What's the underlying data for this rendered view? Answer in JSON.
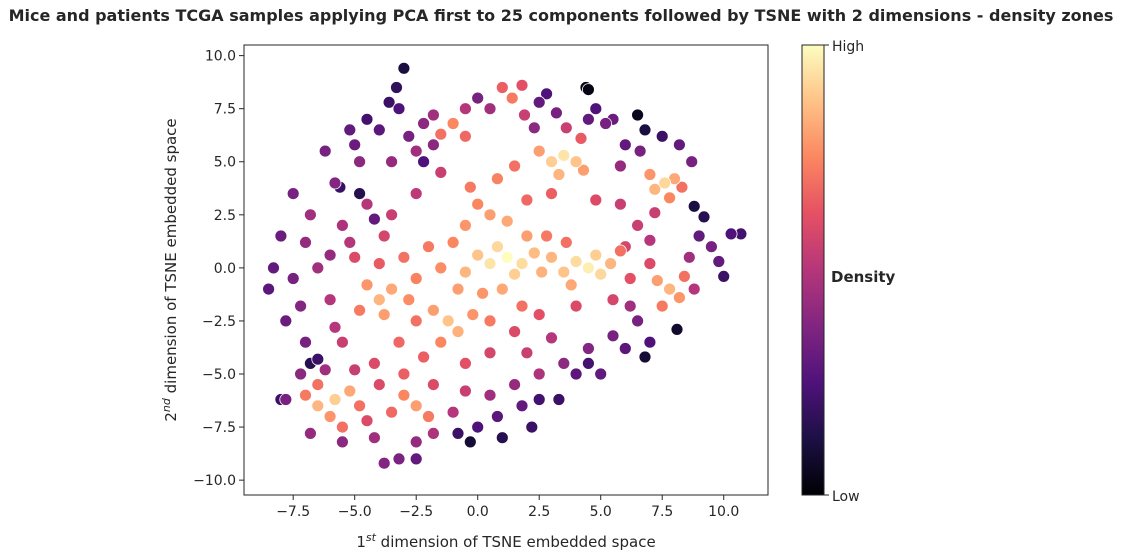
{
  "chart_data": {
    "type": "scatter",
    "title": "Mice and patients TCGA samples applying PCA first to 25 components followed by TSNE with 2 dimensions - density zones",
    "xlabel": {
      "pre": "1",
      "sup": "st",
      "post": " dimension of TSNE embedded space"
    },
    "ylabel": {
      "pre": "2",
      "sup": "nd",
      "post": " dimension of TSNE embedded space"
    },
    "xlim": [
      -9.5,
      11.8
    ],
    "ylim": [
      -10.7,
      10.5
    ],
    "xticks": [
      -7.5,
      -5.0,
      -2.5,
      0.0,
      2.5,
      5.0,
      7.5,
      10.0
    ],
    "xtick_labels": [
      "−7.5",
      "−5.0",
      "−2.5",
      "0.0",
      "2.5",
      "5.0",
      "7.5",
      "10.0"
    ],
    "yticks": [
      10.0,
      7.5,
      5.0,
      2.5,
      0.0,
      -2.5,
      -5.0,
      -7.5,
      -10.0
    ],
    "ytick_labels": [
      "10.0",
      "7.5",
      "5.0",
      "2.5",
      "0.0",
      "−2.5",
      "−5.0",
      "−7.5",
      "−10.0"
    ],
    "grid": false,
    "colormap": "magma",
    "colorbar": {
      "title": "Density",
      "high_label": "High",
      "low_label": "Low",
      "stops": [
        "#000004",
        "#1c1044",
        "#4f127b",
        "#812581",
        "#b5367a",
        "#e55064",
        "#fb8761",
        "#fec287",
        "#fcfdbf"
      ]
    },
    "point_edge_color": "#ffffff",
    "points": [
      {
        "x": 3.5,
        "y": 5.3,
        "d": 0.95
      },
      {
        "x": 3.0,
        "y": 5.0,
        "d": 0.9
      },
      {
        "x": 4.0,
        "y": 5.0,
        "d": 0.88
      },
      {
        "x": 2.5,
        "y": 5.5,
        "d": 0.8
      },
      {
        "x": 4.3,
        "y": 4.6,
        "d": 0.8
      },
      {
        "x": 3.3,
        "y": 4.4,
        "d": 0.85
      },
      {
        "x": 7.6,
        "y": 4.0,
        "d": 0.92
      },
      {
        "x": 7.2,
        "y": 3.7,
        "d": 0.85
      },
      {
        "x": 8.0,
        "y": 4.2,
        "d": 0.82
      },
      {
        "x": 7.0,
        "y": 4.4,
        "d": 0.78
      },
      {
        "x": 7.8,
        "y": 3.3,
        "d": 0.75
      },
      {
        "x": 8.3,
        "y": 3.8,
        "d": 0.7
      },
      {
        "x": 1.2,
        "y": 0.5,
        "d": 1.0
      },
      {
        "x": 0.5,
        "y": 0.2,
        "d": 0.95
      },
      {
        "x": 1.8,
        "y": 0.2,
        "d": 0.93
      },
      {
        "x": 0.8,
        "y": 1.0,
        "d": 0.92
      },
      {
        "x": 1.5,
        "y": -0.3,
        "d": 0.9
      },
      {
        "x": 0.0,
        "y": 0.6,
        "d": 0.88
      },
      {
        "x": 2.3,
        "y": 0.7,
        "d": 0.86
      },
      {
        "x": -0.5,
        "y": -0.2,
        "d": 0.85
      },
      {
        "x": 2.6,
        "y": -0.2,
        "d": 0.84
      },
      {
        "x": 4.5,
        "y": 0.0,
        "d": 0.97
      },
      {
        "x": 4.0,
        "y": 0.3,
        "d": 0.93
      },
      {
        "x": 5.0,
        "y": -0.3,
        "d": 0.92
      },
      {
        "x": 3.5,
        "y": -0.2,
        "d": 0.88
      },
      {
        "x": 4.8,
        "y": 0.6,
        "d": 0.9
      },
      {
        "x": 5.4,
        "y": 0.2,
        "d": 0.85
      },
      {
        "x": 0.5,
        "y": 2.5,
        "d": 0.8
      },
      {
        "x": 1.2,
        "y": 2.2,
        "d": 0.82
      },
      {
        "x": 0.0,
        "y": 3.0,
        "d": 0.75
      },
      {
        "x": -0.3,
        "y": 3.8,
        "d": 0.72
      },
      {
        "x": 0.8,
        "y": 4.2,
        "d": 0.74
      },
      {
        "x": 1.5,
        "y": 4.8,
        "d": 0.7
      },
      {
        "x": -4.0,
        "y": -1.5,
        "d": 0.85
      },
      {
        "x": -3.5,
        "y": -1.0,
        "d": 0.82
      },
      {
        "x": -4.5,
        "y": -0.8,
        "d": 0.78
      },
      {
        "x": -3.8,
        "y": -2.2,
        "d": 0.8
      },
      {
        "x": -2.8,
        "y": -1.5,
        "d": 0.76
      },
      {
        "x": -4.8,
        "y": -2.0,
        "d": 0.72
      },
      {
        "x": -1.2,
        "y": -2.5,
        "d": 0.88
      },
      {
        "x": -0.8,
        "y": -3.0,
        "d": 0.84
      },
      {
        "x": -1.8,
        "y": -2.0,
        "d": 0.8
      },
      {
        "x": -0.2,
        "y": -2.2,
        "d": 0.78
      },
      {
        "x": -1.5,
        "y": -3.5,
        "d": 0.75
      },
      {
        "x": -5.8,
        "y": -6.2,
        "d": 0.9
      },
      {
        "x": -6.5,
        "y": -6.5,
        "d": 0.85
      },
      {
        "x": -5.2,
        "y": -5.8,
        "d": 0.82
      },
      {
        "x": -6.0,
        "y": -7.0,
        "d": 0.78
      },
      {
        "x": -7.0,
        "y": -6.0,
        "d": 0.72
      },
      {
        "x": -4.8,
        "y": -6.5,
        "d": 0.7
      },
      {
        "x": -2.5,
        "y": -6.5,
        "d": 0.8
      },
      {
        "x": -3.0,
        "y": -6.0,
        "d": 0.75
      },
      {
        "x": -2.0,
        "y": -7.0,
        "d": 0.72
      },
      {
        "x": -3.5,
        "y": -6.8,
        "d": 0.68
      },
      {
        "x": 7.8,
        "y": -1.0,
        "d": 0.85
      },
      {
        "x": 7.3,
        "y": -0.6,
        "d": 0.8
      },
      {
        "x": 8.2,
        "y": -1.4,
        "d": 0.78
      },
      {
        "x": 7.5,
        "y": -1.8,
        "d": 0.72
      },
      {
        "x": 8.4,
        "y": -0.4,
        "d": 0.7
      },
      {
        "x": -1.0,
        "y": 6.8,
        "d": 0.75
      },
      {
        "x": -1.5,
        "y": 6.3,
        "d": 0.7
      },
      {
        "x": -0.5,
        "y": 6.2,
        "d": 0.68
      },
      {
        "x": 1.4,
        "y": 8.0,
        "d": 0.72
      },
      {
        "x": 1.0,
        "y": 8.5,
        "d": 0.66
      },
      {
        "x": 1.8,
        "y": 8.6,
        "d": 0.62
      },
      {
        "x": -3.0,
        "y": 0.5,
        "d": 0.7
      },
      {
        "x": -2.0,
        "y": 1.0,
        "d": 0.72
      },
      {
        "x": -2.5,
        "y": -0.5,
        "d": 0.74
      },
      {
        "x": -1.5,
        "y": 0.0,
        "d": 0.76
      },
      {
        "x": -4.0,
        "y": 0.2,
        "d": 0.65
      },
      {
        "x": -5.0,
        "y": 0.5,
        "d": 0.6
      },
      {
        "x": -0.8,
        "y": -1.0,
        "d": 0.8
      },
      {
        "x": 0.2,
        "y": -1.2,
        "d": 0.78
      },
      {
        "x": 1.0,
        "y": -1.0,
        "d": 0.82
      },
      {
        "x": 2.8,
        "y": 1.5,
        "d": 0.72
      },
      {
        "x": 3.6,
        "y": 1.2,
        "d": 0.7
      },
      {
        "x": 2.0,
        "y": 3.2,
        "d": 0.68
      },
      {
        "x": 3.0,
        "y": 3.5,
        "d": 0.66
      },
      {
        "x": 4.8,
        "y": 3.2,
        "d": 0.6
      },
      {
        "x": 5.8,
        "y": 3.0,
        "d": 0.55
      },
      {
        "x": 6.0,
        "y": 1.0,
        "d": 0.58
      },
      {
        "x": 6.5,
        "y": 2.0,
        "d": 0.55
      },
      {
        "x": 6.2,
        "y": -0.5,
        "d": 0.62
      },
      {
        "x": 5.5,
        "y": -1.5,
        "d": 0.58
      },
      {
        "x": 4.0,
        "y": -1.8,
        "d": 0.6
      },
      {
        "x": 2.5,
        "y": -2.2,
        "d": 0.62
      },
      {
        "x": 1.5,
        "y": -3.0,
        "d": 0.6
      },
      {
        "x": 0.5,
        "y": -4.0,
        "d": 0.58
      },
      {
        "x": -0.5,
        "y": -4.5,
        "d": 0.62
      },
      {
        "x": -2.2,
        "y": -4.2,
        "d": 0.66
      },
      {
        "x": -3.2,
        "y": -3.5,
        "d": 0.68
      },
      {
        "x": -4.2,
        "y": -4.5,
        "d": 0.6
      },
      {
        "x": -5.5,
        "y": -3.5,
        "d": 0.55
      },
      {
        "x": -6.0,
        "y": -1.5,
        "d": 0.5
      },
      {
        "x": -6.5,
        "y": 0.0,
        "d": 0.45
      },
      {
        "x": -7.0,
        "y": 1.2,
        "d": 0.42
      },
      {
        "x": -6.8,
        "y": 2.5,
        "d": 0.45
      },
      {
        "x": -5.5,
        "y": 2.0,
        "d": 0.48
      },
      {
        "x": -4.5,
        "y": 3.0,
        "d": 0.5
      },
      {
        "x": -3.5,
        "y": 2.5,
        "d": 0.55
      },
      {
        "x": -2.5,
        "y": 3.5,
        "d": 0.52
      },
      {
        "x": -1.5,
        "y": 4.5,
        "d": 0.55
      },
      {
        "x": -2.5,
        "y": 5.5,
        "d": 0.45
      },
      {
        "x": -3.5,
        "y": 5.0,
        "d": 0.42
      },
      {
        "x": -4.8,
        "y": 5.0,
        "d": 0.4
      },
      {
        "x": -5.8,
        "y": 4.0,
        "d": 0.38
      },
      {
        "x": -6.2,
        "y": 5.5,
        "d": 0.35
      },
      {
        "x": -7.5,
        "y": 3.5,
        "d": 0.35
      },
      {
        "x": -8.0,
        "y": 1.5,
        "d": 0.32
      },
      {
        "x": -8.3,
        "y": 0.0,
        "d": 0.3
      },
      {
        "x": -8.5,
        "y": -1.0,
        "d": 0.28
      },
      {
        "x": -7.8,
        "y": -2.5,
        "d": 0.32
      },
      {
        "x": -7.0,
        "y": -3.5,
        "d": 0.35
      },
      {
        "x": -6.2,
        "y": -4.8,
        "d": 0.45
      },
      {
        "x": -7.2,
        "y": -5.0,
        "d": 0.4
      },
      {
        "x": -7.8,
        "y": -6.2,
        "d": 0.35
      },
      {
        "x": -6.8,
        "y": -7.8,
        "d": 0.42
      },
      {
        "x": -5.5,
        "y": -8.2,
        "d": 0.4
      },
      {
        "x": -4.2,
        "y": -8.0,
        "d": 0.45
      },
      {
        "x": -3.8,
        "y": -9.2,
        "d": 0.38
      },
      {
        "x": -3.2,
        "y": -9.0,
        "d": 0.36
      },
      {
        "x": -2.5,
        "y": -8.2,
        "d": 0.42
      },
      {
        "x": -1.8,
        "y": -7.8,
        "d": 0.48
      },
      {
        "x": -1.0,
        "y": -6.8,
        "d": 0.5
      },
      {
        "x": -0.5,
        "y": -5.8,
        "d": 0.55
      },
      {
        "x": 0.5,
        "y": -6.0,
        "d": 0.45
      },
      {
        "x": 1.5,
        "y": -5.5,
        "d": 0.42
      },
      {
        "x": 2.5,
        "y": -5.0,
        "d": 0.48
      },
      {
        "x": 3.5,
        "y": -4.5,
        "d": 0.4
      },
      {
        "x": 4.5,
        "y": -3.8,
        "d": 0.38
      },
      {
        "x": 5.5,
        "y": -3.2,
        "d": 0.35
      },
      {
        "x": 6.5,
        "y": -2.5,
        "d": 0.35
      },
      {
        "x": 7.0,
        "y": -3.5,
        "d": 0.25
      },
      {
        "x": 6.8,
        "y": -4.2,
        "d": 0.1
      },
      {
        "x": 8.1,
        "y": -2.9,
        "d": 0.08
      },
      {
        "x": 8.8,
        "y": -1.0,
        "d": 0.5
      },
      {
        "x": 8.6,
        "y": 0.5,
        "d": 0.45
      },
      {
        "x": 9.0,
        "y": 1.5,
        "d": 0.3
      },
      {
        "x": 9.5,
        "y": 1.0,
        "d": 0.35
      },
      {
        "x": 9.8,
        "y": 0.3,
        "d": 0.3
      },
      {
        "x": 10.3,
        "y": 1.6,
        "d": 0.25
      },
      {
        "x": 10.7,
        "y": 1.6,
        "d": 0.22
      },
      {
        "x": 10.0,
        "y": -0.4,
        "d": 0.2
      },
      {
        "x": 9.2,
        "y": 2.4,
        "d": 0.15
      },
      {
        "x": 8.8,
        "y": 2.9,
        "d": 0.12
      },
      {
        "x": 8.7,
        "y": 5.0,
        "d": 0.35
      },
      {
        "x": 8.2,
        "y": 5.8,
        "d": 0.3
      },
      {
        "x": 7.5,
        "y": 6.2,
        "d": 0.2
      },
      {
        "x": 6.8,
        "y": 6.5,
        "d": 0.12
      },
      {
        "x": 6.5,
        "y": 7.2,
        "d": 0.05
      },
      {
        "x": 6.0,
        "y": 5.8,
        "d": 0.3
      },
      {
        "x": 5.2,
        "y": 6.8,
        "d": 0.35
      },
      {
        "x": 4.5,
        "y": 7.0,
        "d": 0.3
      },
      {
        "x": 4.8,
        "y": 7.5,
        "d": 0.25
      },
      {
        "x": 5.5,
        "y": 7.0,
        "d": 0.32
      },
      {
        "x": 4.4,
        "y": 8.5,
        "d": 0.02
      },
      {
        "x": 4.5,
        "y": 8.4,
        "d": 0.03
      },
      {
        "x": 3.2,
        "y": 7.3,
        "d": 0.35
      },
      {
        "x": 2.5,
        "y": 7.8,
        "d": 0.3
      },
      {
        "x": 2.3,
        "y": 6.6,
        "d": 0.4
      },
      {
        "x": 0.5,
        "y": 7.5,
        "d": 0.45
      },
      {
        "x": 0.0,
        "y": 8.0,
        "d": 0.35
      },
      {
        "x": -0.5,
        "y": 7.5,
        "d": 0.5
      },
      {
        "x": -1.8,
        "y": 7.2,
        "d": 0.45
      },
      {
        "x": -2.2,
        "y": 6.8,
        "d": 0.4
      },
      {
        "x": -2.8,
        "y": 6.2,
        "d": 0.35
      },
      {
        "x": -3.2,
        "y": 7.5,
        "d": 0.25
      },
      {
        "x": -3.3,
        "y": 8.5,
        "d": 0.18
      },
      {
        "x": -3.0,
        "y": 9.4,
        "d": 0.12
      },
      {
        "x": -3.6,
        "y": 7.8,
        "d": 0.2
      },
      {
        "x": -4.0,
        "y": 6.5,
        "d": 0.28
      },
      {
        "x": -4.5,
        "y": 7.0,
        "d": 0.22
      },
      {
        "x": -5.2,
        "y": 6.5,
        "d": 0.3
      },
      {
        "x": -5.0,
        "y": 5.8,
        "d": 0.32
      },
      {
        "x": -4.8,
        "y": 3.5,
        "d": 0.15
      },
      {
        "x": -5.6,
        "y": 3.8,
        "d": 0.2
      },
      {
        "x": -2.2,
        "y": 5.0,
        "d": 0.25
      },
      {
        "x": -1.8,
        "y": 5.8,
        "d": 0.4
      },
      {
        "x": -4.2,
        "y": 2.3,
        "d": 0.3
      },
      {
        "x": -6.5,
        "y": -4.3,
        "d": 0.2
      },
      {
        "x": -6.8,
        "y": -4.5,
        "d": 0.15
      },
      {
        "x": -8.0,
        "y": -6.2,
        "d": 0.2
      },
      {
        "x": -2.5,
        "y": -9.0,
        "d": 0.3
      },
      {
        "x": -0.3,
        "y": -8.2,
        "d": 0.1
      },
      {
        "x": -0.8,
        "y": -7.8,
        "d": 0.2
      },
      {
        "x": 0.0,
        "y": -7.5,
        "d": 0.25
      },
      {
        "x": 0.8,
        "y": -7.0,
        "d": 0.28
      },
      {
        "x": 1.8,
        "y": -6.5,
        "d": 0.3
      },
      {
        "x": 2.5,
        "y": -6.2,
        "d": 0.22
      },
      {
        "x": 3.3,
        "y": -6.2,
        "d": 0.2
      },
      {
        "x": 1.0,
        "y": -8.0,
        "d": 0.15
      },
      {
        "x": 2.2,
        "y": -7.5,
        "d": 0.2
      },
      {
        "x": 4.0,
        "y": -5.0,
        "d": 0.28
      },
      {
        "x": 4.5,
        "y": -4.5,
        "d": 0.22
      },
      {
        "x": 5.0,
        "y": -5.0,
        "d": 0.3
      },
      {
        "x": 6.0,
        "y": -3.8,
        "d": 0.28
      },
      {
        "x": 6.2,
        "y": -1.8,
        "d": 0.45
      },
      {
        "x": 5.8,
        "y": 4.8,
        "d": 0.42
      },
      {
        "x": 6.6,
        "y": 5.5,
        "d": 0.35
      },
      {
        "x": 2.8,
        "y": 8.2,
        "d": 0.25
      },
      {
        "x": 1.9,
        "y": 7.2,
        "d": 0.55
      },
      {
        "x": 3.6,
        "y": 6.6,
        "d": 0.55
      },
      {
        "x": 4.2,
        "y": 6.1,
        "d": 0.65
      },
      {
        "x": -7.5,
        "y": -0.5,
        "d": 0.35
      },
      {
        "x": -7.2,
        "y": -1.8,
        "d": 0.38
      },
      {
        "x": -5.8,
        "y": -2.8,
        "d": 0.5
      },
      {
        "x": -5.2,
        "y": 1.2,
        "d": 0.5
      },
      {
        "x": -3.8,
        "y": 1.5,
        "d": 0.58
      },
      {
        "x": -6.0,
        "y": 0.6,
        "d": 0.42
      },
      {
        "x": -0.5,
        "y": 2.0,
        "d": 0.78
      },
      {
        "x": -1.0,
        "y": 1.2,
        "d": 0.75
      },
      {
        "x": 2.0,
        "y": 1.5,
        "d": 0.8
      },
      {
        "x": 3.0,
        "y": 0.5,
        "d": 0.85
      },
      {
        "x": 3.8,
        "y": -0.8,
        "d": 0.82
      },
      {
        "x": 5.8,
        "y": 0.8,
        "d": 0.7
      },
      {
        "x": 7.0,
        "y": 0.2,
        "d": 0.6
      },
      {
        "x": 7.0,
        "y": 1.3,
        "d": 0.5
      },
      {
        "x": 7.2,
        "y": 2.6,
        "d": 0.55
      },
      {
        "x": -2.5,
        "y": -2.5,
        "d": 0.7
      },
      {
        "x": -3.0,
        "y": -5.0,
        "d": 0.66
      },
      {
        "x": -4.0,
        "y": -5.5,
        "d": 0.6
      },
      {
        "x": -5.0,
        "y": -4.8,
        "d": 0.55
      },
      {
        "x": 0.5,
        "y": -2.5,
        "d": 0.72
      },
      {
        "x": 1.8,
        "y": -1.8,
        "d": 0.7
      },
      {
        "x": 3.0,
        "y": -3.3,
        "d": 0.5
      },
      {
        "x": 2.0,
        "y": -4.0,
        "d": 0.55
      },
      {
        "x": -1.8,
        "y": -5.5,
        "d": 0.6
      },
      {
        "x": -5.5,
        "y": -7.5,
        "d": 0.7
      },
      {
        "x": -4.5,
        "y": -7.2,
        "d": 0.6
      },
      {
        "x": -6.5,
        "y": -5.5,
        "d": 0.7
      }
    ]
  }
}
